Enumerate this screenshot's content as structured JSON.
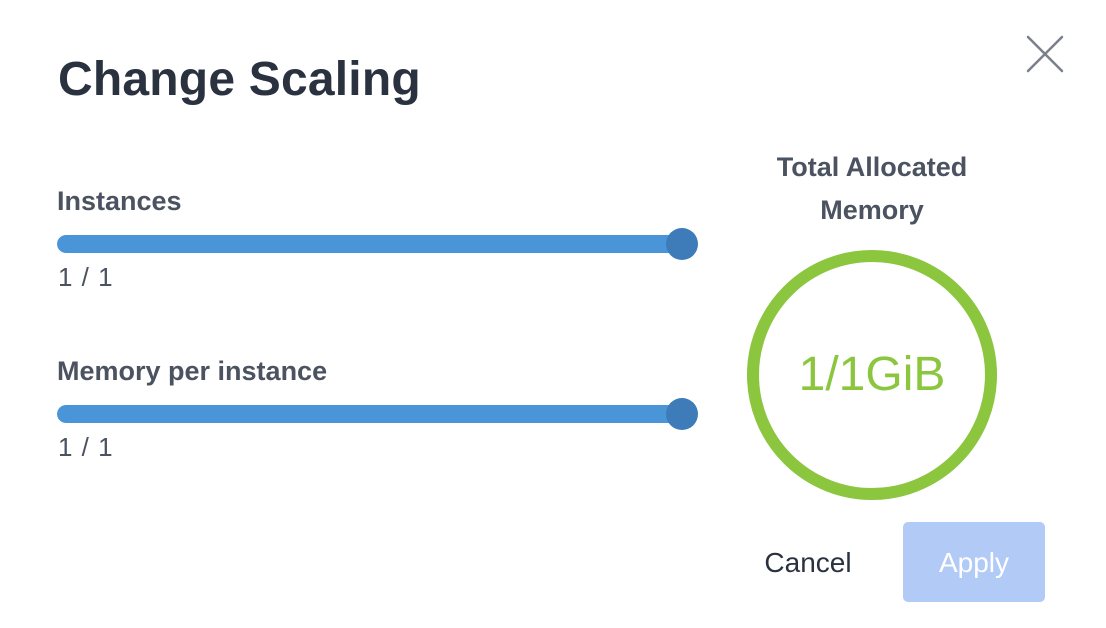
{
  "dialog": {
    "title": "Change Scaling",
    "close_icon": "close-icon"
  },
  "instances": {
    "label": "Instances",
    "value_text": "1 / 1",
    "value": 1,
    "max": 1,
    "fraction": 1.0
  },
  "memory_per_instance": {
    "label": "Memory per instance",
    "value_text": "1 / 1",
    "value": 1,
    "max": 1,
    "fraction": 1.0
  },
  "total_memory": {
    "heading_line1": "Total Allocated",
    "heading_line2": "Memory",
    "value_text": "1/1GiB",
    "fraction": 1.0
  },
  "buttons": {
    "cancel_label": "Cancel",
    "apply_label": "Apply"
  },
  "colors": {
    "slider_fill": "#4a94d8",
    "slider_thumb": "#3d7cb9",
    "ring": "#8cc63f",
    "apply_button": "#b2cbf6",
    "title": "#2a3240"
  }
}
